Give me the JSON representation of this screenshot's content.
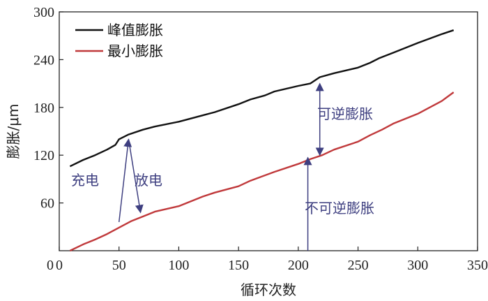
{
  "chart_data": {
    "type": "line",
    "xlabel": "循环次数",
    "ylabel": "膨胀/μm",
    "xlim": [
      0,
      350
    ],
    "ylim": [
      0,
      300
    ],
    "xticks": [
      0,
      50,
      100,
      150,
      200,
      250,
      300,
      350
    ],
    "yticks": [
      60,
      120,
      180,
      240,
      300
    ],
    "grid": false,
    "legend_position": "top-left",
    "series": [
      {
        "name": "峰值膨胀",
        "color": "#111111",
        "points": [
          [
            9,
            106
          ],
          [
            20,
            114
          ],
          [
            30,
            120
          ],
          [
            40,
            127
          ],
          [
            47,
            133
          ],
          [
            50,
            140
          ],
          [
            58,
            146
          ],
          [
            70,
            152
          ],
          [
            80,
            156
          ],
          [
            100,
            162
          ],
          [
            120,
            170
          ],
          [
            130,
            174
          ],
          [
            150,
            184
          ],
          [
            160,
            190
          ],
          [
            172,
            195
          ],
          [
            180,
            200
          ],
          [
            200,
            207
          ],
          [
            210,
            210
          ],
          [
            218,
            218
          ],
          [
            230,
            223
          ],
          [
            250,
            230
          ],
          [
            260,
            236
          ],
          [
            268,
            242
          ],
          [
            280,
            249
          ],
          [
            300,
            261
          ],
          [
            320,
            272
          ],
          [
            330,
            277
          ]
        ]
      },
      {
        "name": "最小膨胀",
        "color": "#c0393b",
        "points": [
          [
            9,
            0
          ],
          [
            20,
            8
          ],
          [
            30,
            14
          ],
          [
            40,
            21
          ],
          [
            50,
            29
          ],
          [
            60,
            37
          ],
          [
            70,
            43
          ],
          [
            80,
            49
          ],
          [
            100,
            56
          ],
          [
            120,
            68
          ],
          [
            130,
            73
          ],
          [
            150,
            81
          ],
          [
            160,
            88
          ],
          [
            180,
            99
          ],
          [
            200,
            109
          ],
          [
            210,
            115
          ],
          [
            220,
            120
          ],
          [
            230,
            127
          ],
          [
            250,
            137
          ],
          [
            260,
            145
          ],
          [
            270,
            152
          ],
          [
            280,
            160
          ],
          [
            300,
            172
          ],
          [
            310,
            180
          ],
          [
            320,
            188
          ],
          [
            330,
            199
          ]
        ]
      }
    ],
    "annotations": [
      {
        "text": "充电",
        "arrow_from": [
          50,
          36
        ],
        "arrow_to": [
          58,
          140
        ],
        "color": "#3e3f80"
      },
      {
        "text": "放电",
        "arrow_from": [
          58,
          140
        ],
        "arrow_to": [
          68,
          48
        ],
        "color": "#3e3f80"
      },
      {
        "text": "可逆膨胀",
        "arrow_from": [
          218,
          120
        ],
        "arrow_to": [
          218,
          210
        ],
        "double_headed": true,
        "color": "#3e3f80"
      },
      {
        "text": "不可逆膨胀",
        "arrow_from": [
          208,
          0
        ],
        "arrow_to": [
          208,
          117
        ],
        "color": "#3e3f80"
      }
    ]
  }
}
